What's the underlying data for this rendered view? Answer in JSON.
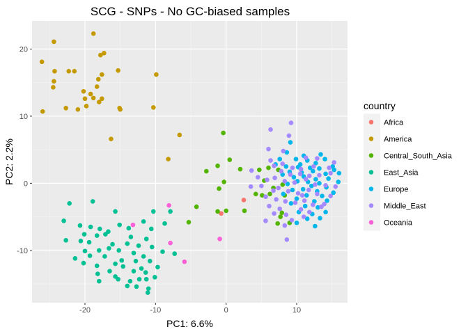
{
  "chart_data": {
    "type": "scatter",
    "title": "SCG - SNPs - No GC-biased samples",
    "xlabel": "PC1: 6.6%",
    "ylabel": "PC2: 2.2%",
    "xlim": [
      -27.5,
      17.2
    ],
    "ylim": [
      -17.8,
      24.2
    ],
    "xticks": [
      -20,
      -10,
      0,
      10
    ],
    "yticks": [
      -10,
      0,
      10,
      20
    ],
    "grid": true,
    "legend": {
      "title": "country",
      "position": "right"
    },
    "series": [
      {
        "name": "Africa",
        "color": "#F8766D",
        "points": [
          [
            2.5,
            -2.5
          ],
          [
            -0.7,
            -4.5
          ]
        ]
      },
      {
        "name": "America",
        "color": "#C49A00",
        "points": [
          [
            -18.8,
            22.3
          ],
          [
            -24.4,
            21.1
          ],
          [
            -26.1,
            18.1
          ],
          [
            -17.3,
            19.4
          ],
          [
            -17.8,
            19.1
          ],
          [
            -24.3,
            16.7
          ],
          [
            -22.3,
            16.7
          ],
          [
            -21.5,
            16.7
          ],
          [
            -17.6,
            16.2
          ],
          [
            -18.1,
            15.5
          ],
          [
            -15.3,
            16.8
          ],
          [
            -9.9,
            16.2
          ],
          [
            -24.4,
            15.2
          ],
          [
            -24.5,
            14.3
          ],
          [
            -20.2,
            13.7
          ],
          [
            -19.2,
            13.3
          ],
          [
            -18.3,
            14.4
          ],
          [
            -18.8,
            12.7
          ],
          [
            -20.0,
            12.6
          ],
          [
            -18.0,
            12.1
          ],
          [
            -17.6,
            12.6
          ],
          [
            -19.8,
            11.5
          ],
          [
            -22.7,
            11.2
          ],
          [
            -21.0,
            11.0
          ],
          [
            -15.1,
            11.2
          ],
          [
            -15.0,
            11.0
          ],
          [
            -10.3,
            11.3
          ],
          [
            -26.0,
            10.7
          ],
          [
            -16.3,
            6.6
          ],
          [
            -6.6,
            7.2
          ],
          [
            -8.2,
            3.6
          ]
        ]
      },
      {
        "name": "Central_South_Asia",
        "color": "#53B400",
        "points": [
          [
            -0.4,
            7.5
          ],
          [
            0.5,
            3.5
          ],
          [
            -1.2,
            2.6
          ],
          [
            -2.8,
            1.8
          ],
          [
            -0.3,
            0.2
          ],
          [
            -1.0,
            -0.8
          ],
          [
            -4.2,
            -3.5
          ],
          [
            -1.2,
            -4.2
          ],
          [
            0.0,
            -4.1
          ],
          [
            2.6,
            -4.1
          ],
          [
            -5.3,
            -5.8
          ],
          [
            2.0,
            2.1
          ],
          [
            4.7,
            2.0
          ],
          [
            6.0,
            2.3
          ],
          [
            7.4,
            2.0
          ],
          [
            5.4,
            0.4
          ],
          [
            6.7,
            -0.7
          ],
          [
            8.0,
            -0.2
          ],
          [
            6.2,
            -1.6
          ],
          [
            4.2,
            -1.6
          ],
          [
            5.1,
            -1.8
          ],
          [
            8.3,
            -1.8
          ],
          [
            7.9,
            -4.4
          ],
          [
            7.7,
            -5.0
          ],
          [
            7.3,
            -6.0
          ],
          [
            9.0,
            -5.9
          ]
        ]
      },
      {
        "name": "East_Asia",
        "color": "#00C094",
        "points": [
          [
            -22.2,
            -3.0
          ],
          [
            -18.9,
            -2.7
          ],
          [
            -15.7,
            -4.2
          ],
          [
            -10.3,
            -4.2
          ],
          [
            -7.9,
            -4.2
          ],
          [
            -23.0,
            -5.6
          ],
          [
            -20.7,
            -6.3
          ],
          [
            -19.2,
            -6.5
          ],
          [
            -17.9,
            -6.8
          ],
          [
            -16.7,
            -7.2
          ],
          [
            -15.1,
            -6.2
          ],
          [
            -13.8,
            -6.7
          ],
          [
            -11.7,
            -5.7
          ],
          [
            -8.7,
            -6.0
          ],
          [
            -10.6,
            -6.8
          ],
          [
            -20.1,
            -7.6
          ],
          [
            -18.3,
            -7.8
          ],
          [
            -17.1,
            -7.6
          ],
          [
            -13.5,
            -8.0
          ],
          [
            -11.3,
            -8.3
          ],
          [
            -22.7,
            -8.5
          ],
          [
            -20.6,
            -8.6
          ],
          [
            -19.4,
            -8.8
          ],
          [
            -16.1,
            -9.1
          ],
          [
            -14.0,
            -9.0
          ],
          [
            -12.4,
            -9.3
          ],
          [
            -10.5,
            -9.5
          ],
          [
            -16.6,
            -9.7
          ],
          [
            -20.0,
            -10.1
          ],
          [
            -18.0,
            -10.0
          ],
          [
            -15.2,
            -10.0
          ],
          [
            -9.0,
            -10.2
          ],
          [
            -17.2,
            -10.9
          ],
          [
            -13.1,
            -10.4
          ],
          [
            -12.8,
            -11.6
          ],
          [
            -11.7,
            -10.9
          ],
          [
            -7.3,
            -10.5
          ],
          [
            -21.4,
            -11.2
          ],
          [
            -19.3,
            -10.8
          ],
          [
            -14.8,
            -11.5
          ],
          [
            -10.8,
            -11.6
          ],
          [
            -20.2,
            -11.9
          ],
          [
            -15.7,
            -12.0
          ],
          [
            -18.3,
            -12.3
          ],
          [
            -12.0,
            -12.7
          ],
          [
            -14.6,
            -12.4
          ],
          [
            -9.7,
            -12.5
          ],
          [
            -16.5,
            -13.1
          ],
          [
            -13.1,
            -13.1
          ],
          [
            -11.4,
            -13.3
          ],
          [
            -18.2,
            -13.5
          ],
          [
            -15.7,
            -13.9
          ],
          [
            -12.3,
            -14.3
          ],
          [
            -10.1,
            -14.0
          ],
          [
            -15.3,
            -14.3
          ],
          [
            -13.6,
            -14.6
          ],
          [
            -11.3,
            -14.3
          ],
          [
            -18.0,
            -14.6
          ],
          [
            -12.7,
            -15.4
          ],
          [
            -14.0,
            -15.3
          ],
          [
            -11.0,
            -15.7
          ],
          [
            -11.1,
            -16.3
          ]
        ]
      },
      {
        "name": "Europe",
        "color": "#00B6EB",
        "points": [
          [
            9.1,
            6.1
          ],
          [
            8.6,
            4.6
          ],
          [
            11.0,
            4.1
          ],
          [
            13.4,
            4.3
          ],
          [
            7.6,
            3.6
          ],
          [
            9.9,
            3.6
          ],
          [
            11.5,
            3.4
          ],
          [
            12.7,
            3.0
          ],
          [
            14.0,
            3.6
          ],
          [
            7.0,
            2.8
          ],
          [
            8.5,
            2.5
          ],
          [
            10.2,
            2.4
          ],
          [
            11.9,
            2.3
          ],
          [
            13.2,
            2.2
          ],
          [
            15.1,
            2.5
          ],
          [
            9.0,
            1.7
          ],
          [
            10.7,
            1.6
          ],
          [
            12.3,
            1.8
          ],
          [
            14.1,
            1.4
          ],
          [
            8.0,
            1.3
          ],
          [
            9.6,
            0.9
          ],
          [
            11.0,
            1.0
          ],
          [
            12.7,
            0.6
          ],
          [
            14.5,
            0.7
          ],
          [
            10.1,
            0.3
          ],
          [
            11.6,
            0.2
          ],
          [
            13.2,
            0.0
          ],
          [
            15.9,
            0.2
          ],
          [
            8.7,
            -0.1
          ],
          [
            12.1,
            -0.4
          ],
          [
            14.2,
            -0.6
          ],
          [
            9.4,
            -1.0
          ],
          [
            10.9,
            -0.9
          ],
          [
            12.9,
            -1.2
          ],
          [
            8.1,
            -1.6
          ],
          [
            11.4,
            -1.8
          ],
          [
            13.6,
            -1.9
          ],
          [
            10.0,
            -2.3
          ],
          [
            12.5,
            -2.7
          ],
          [
            14.3,
            -2.6
          ],
          [
            9.2,
            -3.0
          ],
          [
            11.2,
            -3.4
          ],
          [
            13.0,
            -3.6
          ],
          [
            10.3,
            -4.3
          ],
          [
            12.2,
            -4.6
          ],
          [
            14.1,
            -4.3
          ],
          [
            11.5,
            -5.3
          ],
          [
            13.3,
            -5.2
          ],
          [
            10.0,
            -5.9
          ],
          [
            12.6,
            -6.4
          ],
          [
            15.2,
            -1.4
          ],
          [
            16.0,
            1.5
          ],
          [
            15.3,
            2.0
          ],
          [
            10.5,
            2.8
          ]
        ]
      },
      {
        "name": "Middle_East",
        "color": "#A58AFF",
        "points": [
          [
            9.2,
            9.0
          ],
          [
            6.3,
            8.0
          ],
          [
            8.9,
            7.1
          ],
          [
            6.0,
            5.1
          ],
          [
            8.1,
            4.8
          ],
          [
            6.3,
            3.4
          ],
          [
            11.3,
            3.8
          ],
          [
            12.9,
            3.7
          ],
          [
            6.8,
            2.6
          ],
          [
            8.0,
            2.9
          ],
          [
            9.4,
            2.3
          ],
          [
            10.6,
            2.1
          ],
          [
            12.4,
            2.5
          ],
          [
            14.6,
            2.3
          ],
          [
            15.3,
            3.1
          ],
          [
            7.8,
            1.8
          ],
          [
            9.1,
            1.3
          ],
          [
            10.5,
            1.4
          ],
          [
            11.8,
            1.1
          ],
          [
            13.2,
            1.2
          ],
          [
            14.8,
            1.5
          ],
          [
            3.6,
            1.9
          ],
          [
            4.5,
            0.9
          ],
          [
            5.8,
            0.5
          ],
          [
            6.9,
            0.8
          ],
          [
            8.3,
            0.3
          ],
          [
            9.7,
            0.1
          ],
          [
            11.3,
            0.6
          ],
          [
            12.6,
            -0.2
          ],
          [
            14.1,
            -0.3
          ],
          [
            15.5,
            -0.5
          ],
          [
            3.5,
            -0.5
          ],
          [
            5.0,
            -0.4
          ],
          [
            6.7,
            -1.1
          ],
          [
            7.4,
            -0.7
          ],
          [
            8.8,
            -1.2
          ],
          [
            10.2,
            -1.5
          ],
          [
            11.7,
            -1.0
          ],
          [
            12.9,
            -1.6
          ],
          [
            14.8,
            -1.9
          ],
          [
            5.6,
            -2.0
          ],
          [
            7.1,
            -2.4
          ],
          [
            8.4,
            -2.7
          ],
          [
            9.8,
            -2.9
          ],
          [
            11.1,
            -2.6
          ],
          [
            12.3,
            -3.2
          ],
          [
            13.5,
            -3.5
          ],
          [
            6.1,
            -3.4
          ],
          [
            7.6,
            -3.8
          ],
          [
            10.6,
            -3.9
          ],
          [
            11.8,
            -4.3
          ],
          [
            13.9,
            -3.1
          ],
          [
            6.8,
            -4.5
          ],
          [
            8.5,
            -4.7
          ],
          [
            9.3,
            -5.5
          ],
          [
            11.0,
            -5.0
          ],
          [
            5.6,
            -5.6
          ],
          [
            8.3,
            -6.3
          ],
          [
            8.6,
            -8.4
          ],
          [
            10.8,
            -1.8
          ]
        ]
      },
      {
        "name": "Oceania",
        "color": "#FB61D7",
        "points": [
          [
            -8.1,
            -3.3
          ],
          [
            -13.2,
            -6.2
          ],
          [
            -7.9,
            -8.9
          ],
          [
            -0.9,
            -8.3
          ],
          [
            -5.9,
            -11.7
          ]
        ]
      }
    ]
  }
}
